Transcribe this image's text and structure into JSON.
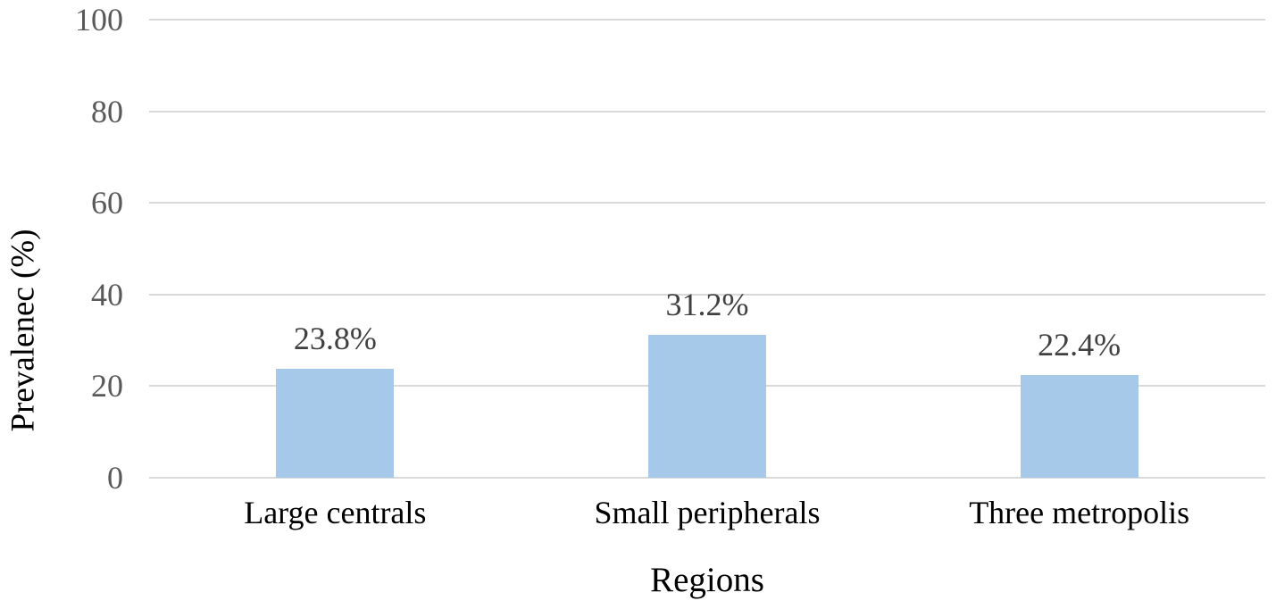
{
  "chart_data": {
    "type": "bar",
    "title": "",
    "categories": [
      "Large centrals",
      "Small peripherals",
      "Three metropolis"
    ],
    "values": [
      23.8,
      31.2,
      22.4
    ],
    "value_labels": [
      "23.8%",
      "31.2%",
      "22.4%"
    ],
    "xlabel": "Regions",
    "ylabel": "Prevalenec (%)",
    "ylim": [
      0,
      100
    ],
    "yticks": [
      0,
      20,
      40,
      60,
      80,
      100
    ],
    "ytick_labels": [
      "0",
      "20",
      "40",
      "60",
      "80",
      "100"
    ],
    "grid": "horizontal",
    "legend_position": "none",
    "bar_color": "#a6c9ea",
    "gridline_color": "#d9d9d9",
    "tick_label_color": "#595959",
    "data_label_color": "#404040",
    "axis_label_color": "#000000",
    "background_color": "#ffffff"
  }
}
